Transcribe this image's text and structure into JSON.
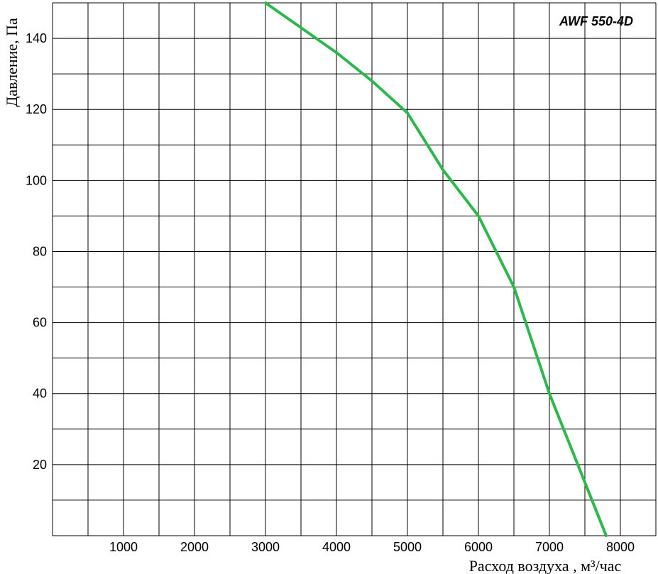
{
  "chart_data": {
    "type": "line",
    "title": "AWF 550-4D",
    "xlabel": "Расход воздуха , м³/час",
    "ylabel": "Давление, Па",
    "xlim": [
      0,
      8500
    ],
    "ylim": [
      0,
      150
    ],
    "x_ticks": [
      1000,
      2000,
      3000,
      4000,
      5000,
      6000,
      7000,
      8000
    ],
    "y_ticks": [
      20,
      40,
      60,
      80,
      100,
      120,
      140
    ],
    "x_grid_step": 500,
    "y_grid_step": 10,
    "grid": true,
    "line_color": "#2db84d",
    "series": [
      {
        "x": [
          3000,
          3500,
          4000,
          4500,
          5000,
          5500,
          6000,
          6500,
          7000,
          7500,
          7800
        ],
        "values": [
          150,
          143,
          136,
          128,
          119,
          103,
          90,
          70,
          40,
          15,
          0
        ]
      }
    ]
  }
}
